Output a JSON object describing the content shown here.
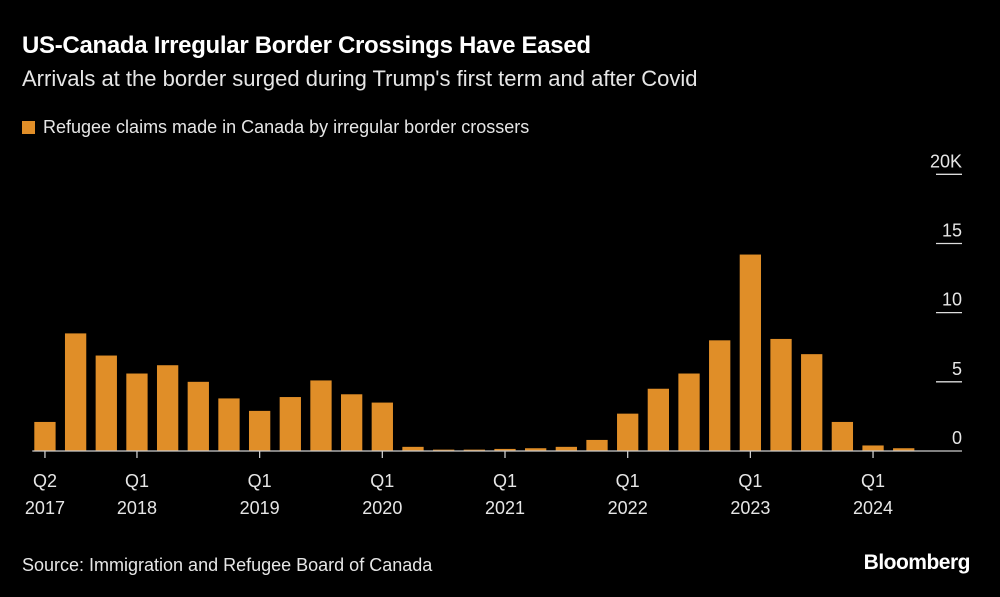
{
  "title": "US-Canada Irregular Border Crossings Have Eased",
  "subtitle": "Arrivals at the border surged during Trump's first term and after Covid",
  "source": "Source: Immigration and Refugee Board of Canada",
  "logo": "Bloomberg",
  "colors": {
    "bar": "#e08e28",
    "background": "#000000",
    "axis": "#cccccc"
  },
  "chart_data": {
    "type": "bar",
    "title": "US-Canada Irregular Border Crossings Have Eased",
    "legend": [
      {
        "name": "Refugee claims made in Canada by irregular border crossers",
        "color": "#e08e28"
      }
    ],
    "legend_position": "top-left",
    "y_axis_position": "right",
    "ylim": [
      0,
      20
    ],
    "y_ticks": [
      {
        "value": 20,
        "label": "20K"
      },
      {
        "value": 15,
        "label": "15"
      },
      {
        "value": 10,
        "label": "10"
      },
      {
        "value": 5,
        "label": "5"
      },
      {
        "value": 0,
        "label": "0"
      }
    ],
    "x_ticks": [
      {
        "index": 0,
        "line1": "Q2",
        "line2": "2017"
      },
      {
        "index": 3,
        "line1": "Q1",
        "line2": "2018"
      },
      {
        "index": 7,
        "line1": "Q1",
        "line2": "2019"
      },
      {
        "index": 11,
        "line1": "Q1",
        "line2": "2020"
      },
      {
        "index": 15,
        "line1": "Q1",
        "line2": "2021"
      },
      {
        "index": 19,
        "line1": "Q1",
        "line2": "2022"
      },
      {
        "index": 23,
        "line1": "Q1",
        "line2": "2023"
      },
      {
        "index": 27,
        "line1": "Q1",
        "line2": "2024"
      }
    ],
    "categories": [
      "Q2 2017",
      "Q3 2017",
      "Q4 2017",
      "Q1 2018",
      "Q2 2018",
      "Q3 2018",
      "Q4 2018",
      "Q1 2019",
      "Q2 2019",
      "Q3 2019",
      "Q4 2019",
      "Q1 2020",
      "Q2 2020",
      "Q3 2020",
      "Q4 2020",
      "Q1 2021",
      "Q2 2021",
      "Q3 2021",
      "Q4 2021",
      "Q1 2022",
      "Q2 2022",
      "Q3 2022",
      "Q4 2022",
      "Q1 2023",
      "Q2 2023",
      "Q3 2023",
      "Q4 2023",
      "Q1 2024",
      "Q2 2024"
    ],
    "series": [
      {
        "name": "Refugee claims made in Canada by irregular border crossers",
        "values": [
          2.1,
          8.5,
          6.9,
          5.6,
          6.2,
          5.0,
          3.8,
          2.9,
          3.9,
          5.1,
          4.1,
          3.5,
          0.3,
          0.1,
          0.1,
          0.15,
          0.2,
          0.3,
          0.8,
          2.7,
          4.5,
          5.6,
          8.0,
          14.2,
          8.1,
          7.0,
          2.1,
          0.4,
          0.2
        ]
      }
    ],
    "grid": false
  }
}
